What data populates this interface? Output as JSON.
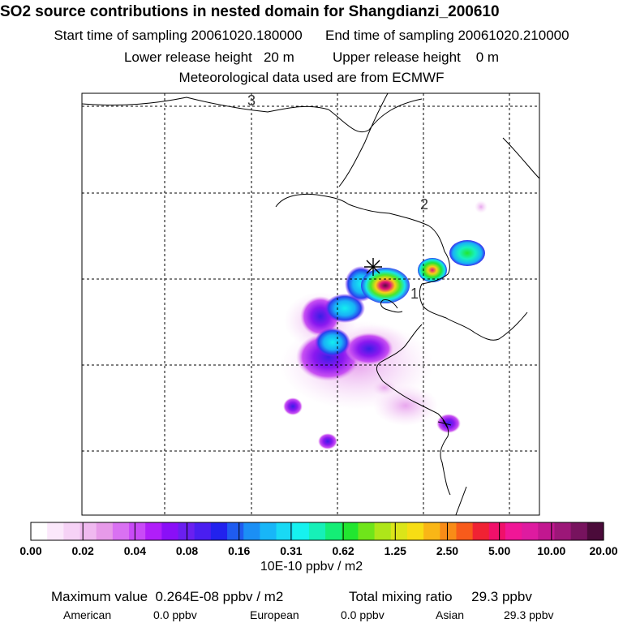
{
  "header": {
    "title": "SO2 source contributions in nested domain for Shangdianzi_200610",
    "start_label": "Start time of sampling 20061020.180000",
    "end_label": "End time of sampling 20061020.210000",
    "lower_label": "Lower release height   20 m",
    "upper_label": "Upper release height    0 m",
    "met_label": "Meteorological data used are from ECMWF"
  },
  "map": {
    "region_labels": [
      "3",
      "2",
      "1"
    ],
    "station_marker": "star-marker"
  },
  "colorbar": {
    "tick_labels": [
      "0.00",
      "0.02",
      "0.04",
      "0.08",
      "0.16",
      "0.31",
      "0.62",
      "1.25",
      "2.50",
      "5.00",
      "10.00",
      "20.00"
    ],
    "units": "10E-10 ppbv / m2",
    "colors": [
      "#ffffff",
      "#fbe8fb",
      "#f6d2f6",
      "#f0b9f0",
      "#e79ae9",
      "#d971f2",
      "#c94af7",
      "#b01ef9",
      "#8a0ff7",
      "#6a1ff0",
      "#4a1ef0",
      "#2222ee",
      "#1f5cf0",
      "#1b8ff5",
      "#18b6f8",
      "#19d9f5",
      "#16f2ef",
      "#16f0b8",
      "#14ee76",
      "#22e630",
      "#6fe51a",
      "#aee619",
      "#dbe519",
      "#f7dd14",
      "#f9b616",
      "#f98c17",
      "#f85b1b",
      "#f02233",
      "#f0106a",
      "#f01697",
      "#de1ba0",
      "#c21790",
      "#9c1778",
      "#77135e",
      "#4b0b3a"
    ]
  },
  "summary": {
    "max_label": "Maximum value  0.264E-08 ppbv / m2",
    "total_label": "Total mixing ratio     29.3 ppbv",
    "american_label": "American",
    "american_value": "0.0 ppbv",
    "european_label": "European",
    "european_value": "0.0 ppbv",
    "asian_label": "Asian",
    "asian_value": "29.3 ppbv"
  }
}
